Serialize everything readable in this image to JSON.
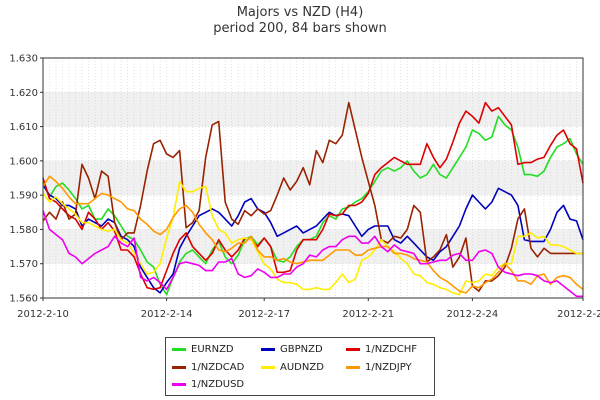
{
  "header": {
    "title": "Majors vs NZD (H4)",
    "subtitle": "period 200, 84 bars shown"
  },
  "chart_data": {
    "type": "line",
    "title": "Majors vs NZD (H4)",
    "subtitle": "period 200, 84 bars shown",
    "xlabel": "",
    "ylabel": "",
    "ylim": [
      1.56,
      1.63
    ],
    "yticks": [
      "1.630",
      "1.620",
      "1.610",
      "1.600",
      "1.590",
      "1.580",
      "1.570",
      "1.560"
    ],
    "xticks": [
      "2012-2-10",
      "2012-2-14",
      "2012-2-17",
      "2012-2-21",
      "2012-2-24",
      "2012-2-28"
    ],
    "xtick_positions": [
      0,
      19,
      34,
      50,
      66,
      83
    ],
    "grid": true,
    "legend_position": "bottom-center",
    "series": [
      {
        "name": "EURNZD",
        "color": "#22dd22",
        "values": [
          1.5935,
          1.5895,
          1.5925,
          1.5935,
          1.5915,
          1.589,
          1.586,
          1.587,
          1.583,
          1.583,
          1.586,
          1.584,
          1.581,
          1.578,
          1.577,
          1.574,
          1.5705,
          1.569,
          1.564,
          1.561,
          1.566,
          1.5705,
          1.573,
          1.574,
          1.572,
          1.57,
          1.574,
          1.5765,
          1.572,
          1.57,
          1.5725,
          1.577,
          1.578,
          1.5755,
          1.5775,
          1.575,
          1.571,
          1.5705,
          1.572,
          1.575,
          1.577,
          1.577,
          1.578,
          1.582,
          1.584,
          1.583,
          1.586,
          1.5865,
          1.588,
          1.589,
          1.591,
          1.594,
          1.597,
          1.598,
          1.597,
          1.598,
          1.6,
          1.597,
          1.595,
          1.596,
          1.599,
          1.596,
          1.595,
          1.598,
          1.601,
          1.604,
          1.609,
          1.608,
          1.606,
          1.607,
          1.613,
          1.6105,
          1.609,
          1.604,
          1.596,
          1.596,
          1.5955,
          1.597,
          1.601,
          1.604,
          1.605,
          1.6065,
          1.602,
          1.599
        ]
      },
      {
        "name": "GBPNZD",
        "color": "#0000bb",
        "values": [
          1.593,
          1.59,
          1.589,
          1.587,
          1.587,
          1.586,
          1.581,
          1.583,
          1.582,
          1.581,
          1.583,
          1.582,
          1.578,
          1.577,
          1.575,
          1.569,
          1.566,
          1.563,
          1.5615,
          1.5645,
          1.567,
          1.5745,
          1.578,
          1.581,
          1.584,
          1.585,
          1.586,
          1.585,
          1.583,
          1.581,
          1.584,
          1.588,
          1.589,
          1.586,
          1.585,
          1.582,
          1.578,
          1.579,
          1.58,
          1.581,
          1.579,
          1.58,
          1.581,
          1.583,
          1.585,
          1.584,
          1.5845,
          1.584,
          1.581,
          1.578,
          1.58,
          1.581,
          1.581,
          1.581,
          1.577,
          1.576,
          1.578,
          1.576,
          1.574,
          1.572,
          1.571,
          1.5735,
          1.575,
          1.578,
          1.581,
          1.586,
          1.59,
          1.588,
          1.586,
          1.588,
          1.592,
          1.591,
          1.59,
          1.587,
          1.577,
          1.5765,
          1.5765,
          1.5765,
          1.58,
          1.585,
          1.587,
          1.583,
          1.5825,
          1.577
        ]
      },
      {
        "name": "1/NZDCHF",
        "color": "#dd0000",
        "values": [
          1.595,
          1.589,
          1.588,
          1.586,
          1.584,
          1.583,
          1.58,
          1.585,
          1.583,
          1.58,
          1.582,
          1.5795,
          1.574,
          1.574,
          1.572,
          1.567,
          1.563,
          1.5625,
          1.563,
          1.568,
          1.573,
          1.577,
          1.579,
          1.575,
          1.573,
          1.571,
          1.573,
          1.577,
          1.574,
          1.572,
          1.574,
          1.5775,
          1.577,
          1.575,
          1.5775,
          1.575,
          1.5675,
          1.5675,
          1.568,
          1.574,
          1.577,
          1.577,
          1.577,
          1.58,
          1.5845,
          1.584,
          1.5845,
          1.587,
          1.587,
          1.588,
          1.5905,
          1.596,
          1.598,
          1.5995,
          1.601,
          1.6,
          1.599,
          1.599,
          1.599,
          1.605,
          1.601,
          1.598,
          1.6005,
          1.6055,
          1.611,
          1.6145,
          1.613,
          1.611,
          1.617,
          1.6145,
          1.6155,
          1.613,
          1.6105,
          1.599,
          1.5995,
          1.5995,
          1.6005,
          1.601,
          1.6045,
          1.6075,
          1.609,
          1.605,
          1.6035,
          1.5935
        ]
      },
      {
        "name": "1/NZDCAD",
        "color": "#992200",
        "values": [
          1.5825,
          1.585,
          1.583,
          1.588,
          1.583,
          1.5845,
          1.599,
          1.595,
          1.589,
          1.597,
          1.5955,
          1.582,
          1.577,
          1.579,
          1.579,
          1.587,
          1.597,
          1.605,
          1.606,
          1.602,
          1.601,
          1.603,
          1.5805,
          1.582,
          1.5855,
          1.601,
          1.6105,
          1.6115,
          1.588,
          1.583,
          1.5815,
          1.5855,
          1.584,
          1.586,
          1.5845,
          1.5855,
          1.59,
          1.595,
          1.5915,
          1.594,
          1.598,
          1.593,
          1.603,
          1.5995,
          1.606,
          1.605,
          1.6075,
          1.617,
          1.609,
          1.601,
          1.594,
          1.587,
          1.577,
          1.576,
          1.578,
          1.5775,
          1.58,
          1.587,
          1.585,
          1.5705,
          1.572,
          1.574,
          1.5785,
          1.569,
          1.572,
          1.5775,
          1.5635,
          1.562,
          1.565,
          1.565,
          1.5665,
          1.569,
          1.5745,
          1.583,
          1.586,
          1.5745,
          1.572,
          1.5745,
          1.573,
          1.573,
          1.573,
          1.573,
          1.573,
          1.573
        ]
      },
      {
        "name": "AUDNZD",
        "color": "#ffee00",
        "values": [
          1.5905,
          1.588,
          1.5895,
          1.5875,
          1.586,
          1.5845,
          1.582,
          1.582,
          1.581,
          1.58,
          1.5795,
          1.58,
          1.577,
          1.576,
          1.573,
          1.57,
          1.567,
          1.5675,
          1.57,
          1.5775,
          1.5835,
          1.594,
          1.591,
          1.591,
          1.592,
          1.5925,
          1.584,
          1.58,
          1.579,
          1.576,
          1.577,
          1.5775,
          1.577,
          1.5735,
          1.57,
          1.5685,
          1.5655,
          1.5645,
          1.5645,
          1.564,
          1.5625,
          1.5625,
          1.563,
          1.5625,
          1.5625,
          1.5645,
          1.567,
          1.5645,
          1.5655,
          1.571,
          1.572,
          1.574,
          1.577,
          1.575,
          1.5735,
          1.5715,
          1.57,
          1.567,
          1.5665,
          1.5645,
          1.564,
          1.563,
          1.5625,
          1.5615,
          1.561,
          1.565,
          1.5645,
          1.565,
          1.567,
          1.5665,
          1.569,
          1.57,
          1.57,
          1.578,
          1.578,
          1.579,
          1.5775,
          1.578,
          1.5755,
          1.5755,
          1.575,
          1.574,
          1.573,
          1.573
        ]
      },
      {
        "name": "1/NZDJPY",
        "color": "#ff9900",
        "values": [
          1.5925,
          1.5955,
          1.594,
          1.592,
          1.5895,
          1.5875,
          1.5875,
          1.5875,
          1.589,
          1.5905,
          1.59,
          1.589,
          1.588,
          1.586,
          1.5855,
          1.583,
          1.5815,
          1.5795,
          1.5785,
          1.58,
          1.5835,
          1.586,
          1.587,
          1.585,
          1.5815,
          1.579,
          1.577,
          1.574,
          1.5735,
          1.5745,
          1.576,
          1.576,
          1.578,
          1.574,
          1.572,
          1.572,
          1.571,
          1.5715,
          1.5705,
          1.57,
          1.5705,
          1.571,
          1.571,
          1.571,
          1.5725,
          1.574,
          1.574,
          1.574,
          1.5725,
          1.5725,
          1.574,
          1.5745,
          1.575,
          1.575,
          1.573,
          1.573,
          1.5725,
          1.5715,
          1.571,
          1.5705,
          1.568,
          1.566,
          1.565,
          1.5635,
          1.562,
          1.5615,
          1.5635,
          1.563,
          1.5645,
          1.5655,
          1.5675,
          1.57,
          1.568,
          1.565,
          1.565,
          1.564,
          1.5665,
          1.567,
          1.564,
          1.566,
          1.5665,
          1.566,
          1.564,
          1.5625
        ]
      },
      {
        "name": "1/NZDUSD",
        "color": "#ee00ee",
        "values": [
          1.5855,
          1.58,
          1.5785,
          1.577,
          1.573,
          1.572,
          1.57,
          1.5715,
          1.573,
          1.574,
          1.575,
          1.578,
          1.576,
          1.575,
          1.5775,
          1.566,
          1.565,
          1.566,
          1.5645,
          1.5625,
          1.566,
          1.57,
          1.5705,
          1.57,
          1.5695,
          1.568,
          1.568,
          1.5705,
          1.5705,
          1.5715,
          1.567,
          1.566,
          1.5665,
          1.5685,
          1.5675,
          1.566,
          1.566,
          1.567,
          1.567,
          1.569,
          1.57,
          1.5725,
          1.572,
          1.574,
          1.575,
          1.575,
          1.577,
          1.578,
          1.578,
          1.576,
          1.576,
          1.578,
          1.575,
          1.5735,
          1.5755,
          1.574,
          1.5735,
          1.573,
          1.57,
          1.57,
          1.5705,
          1.571,
          1.571,
          1.5725,
          1.573,
          1.571,
          1.571,
          1.5735,
          1.574,
          1.573,
          1.569,
          1.5675,
          1.567,
          1.5665,
          1.567,
          1.567,
          1.5665,
          1.565,
          1.5645,
          1.565,
          1.5635,
          1.562,
          1.5605,
          1.5605
        ]
      }
    ]
  }
}
